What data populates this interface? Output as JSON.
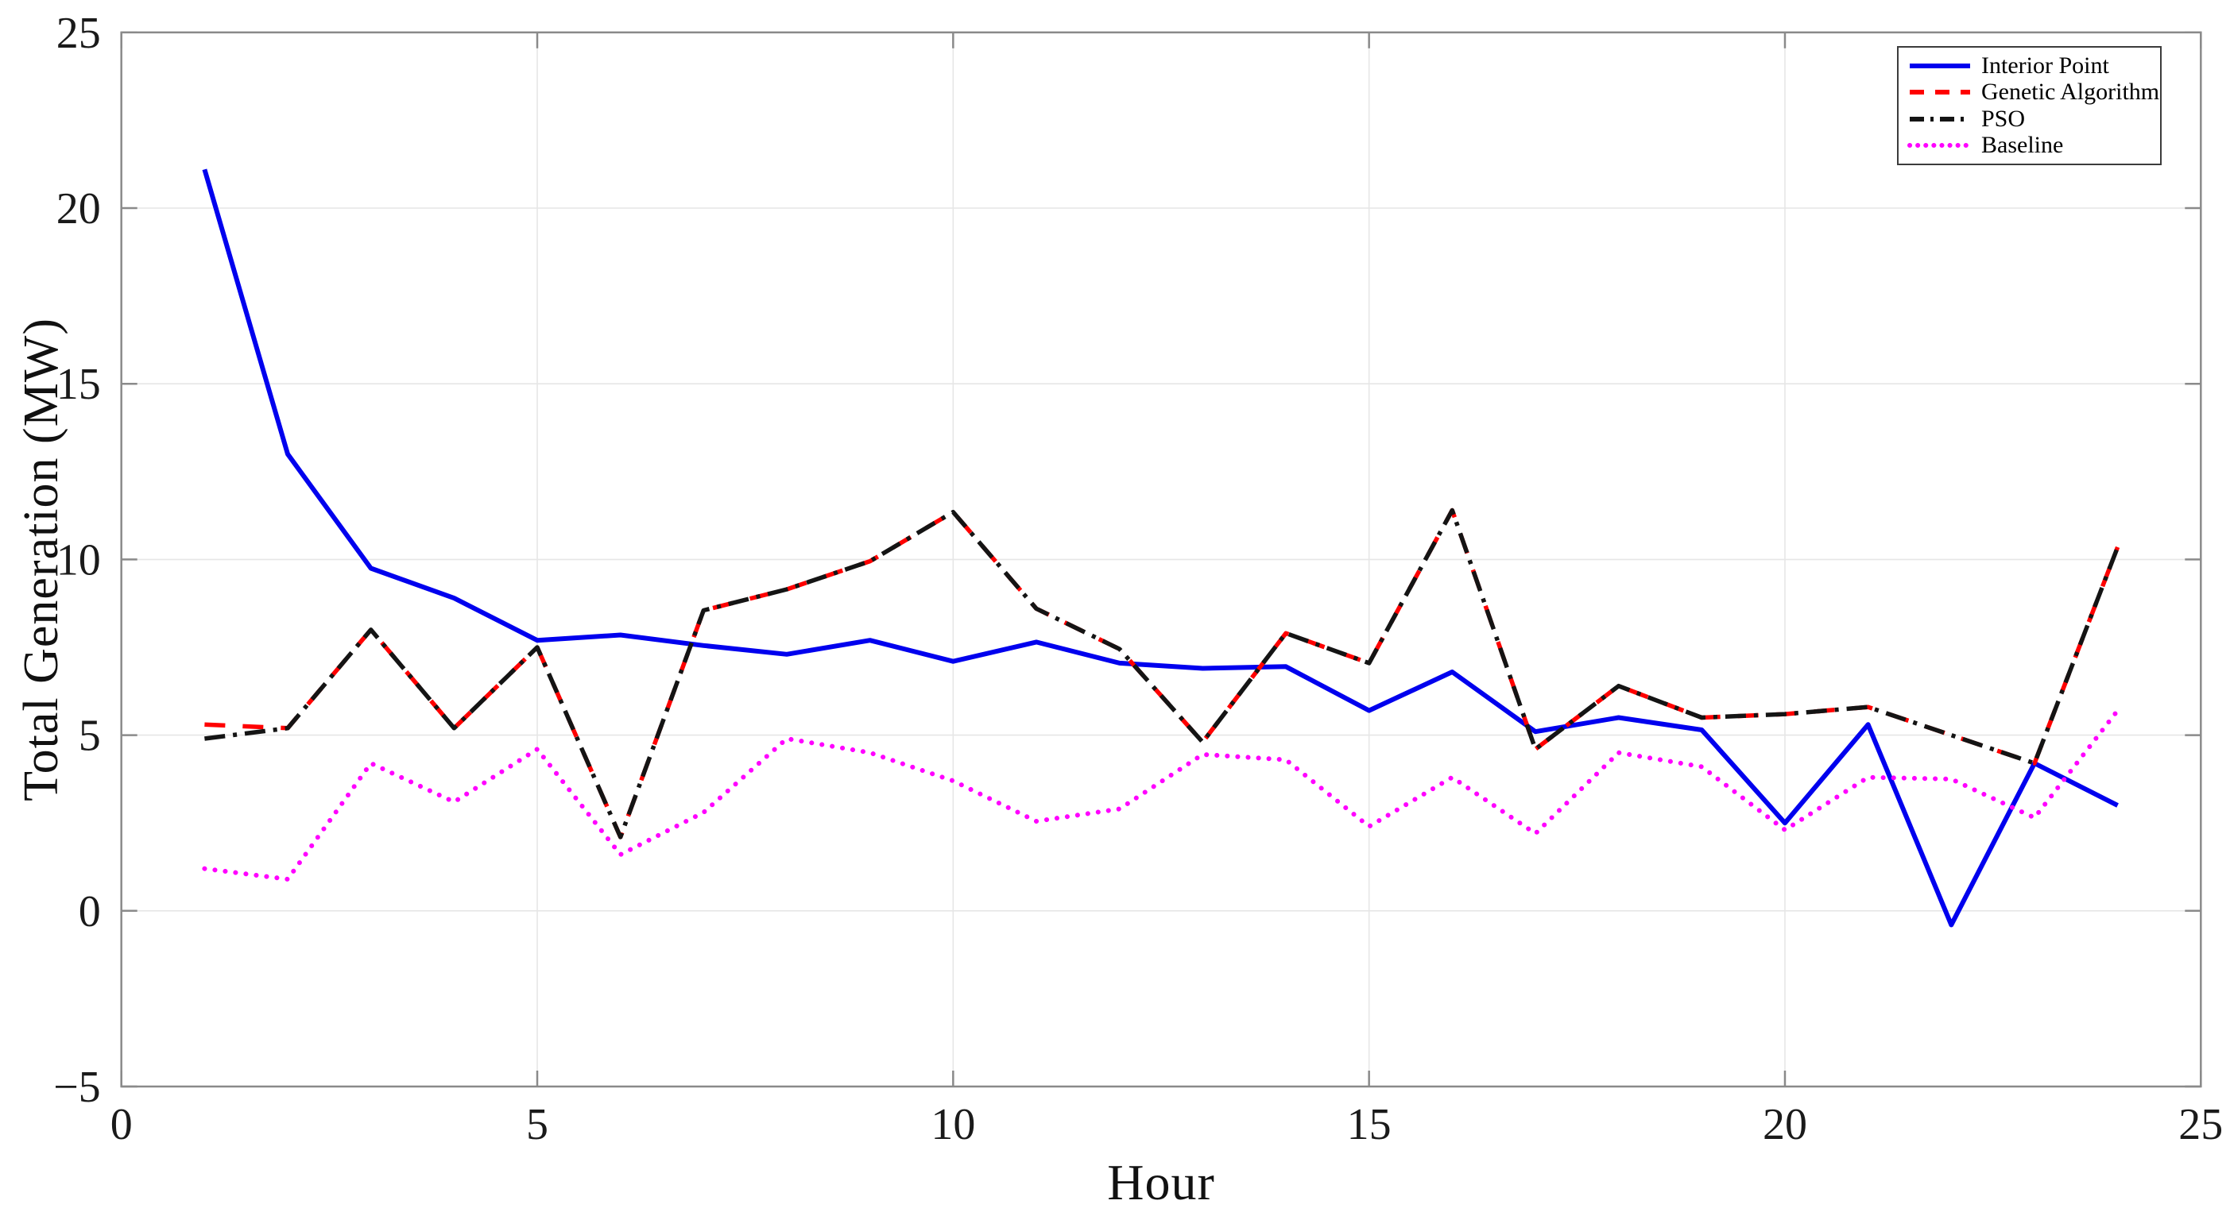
{
  "figure": {
    "background": "#ffffff",
    "box_color": "#8a8a8a",
    "grid_color": "#e6e6e6",
    "tick_label_color": "#1a1a1a"
  },
  "chart_data": {
    "type": "line",
    "title": "",
    "xlabel": "Hour",
    "ylabel": "Total Generation (MW)",
    "xlim": [
      0,
      25
    ],
    "ylim": [
      -5,
      25
    ],
    "x_ticks": [
      0,
      5,
      10,
      15,
      20,
      25
    ],
    "y_ticks": [
      -5,
      0,
      5,
      10,
      15,
      20,
      25
    ],
    "x_tick_labels": [
      "0",
      "5",
      "10",
      "15",
      "20",
      "25"
    ],
    "y_tick_labels": [
      "−5",
      "0",
      "5",
      "10",
      "15",
      "20",
      "25"
    ],
    "grid": true,
    "legend_position": "top-right",
    "x": [
      1,
      2,
      3,
      4,
      5,
      6,
      7,
      8,
      9,
      10,
      11,
      12,
      13,
      14,
      15,
      16,
      17,
      18,
      19,
      20,
      21,
      22,
      23,
      24
    ],
    "series": [
      {
        "name": "Interior Point",
        "color": "#0000ee",
        "style": "solid",
        "values": [
          21.1,
          13.0,
          9.75,
          8.9,
          7.7,
          7.85,
          7.55,
          7.3,
          7.7,
          7.1,
          7.65,
          7.05,
          6.9,
          6.95,
          5.7,
          6.8,
          5.1,
          5.5,
          5.15,
          2.5,
          5.3,
          -0.4,
          4.2,
          3.0
        ]
      },
      {
        "name": "Genetic Algorithm",
        "color": "#ff0000",
        "style": "dashed",
        "values": [
          5.3,
          5.2,
          8.0,
          5.2,
          7.5,
          2.1,
          8.55,
          9.15,
          9.95,
          11.35,
          8.6,
          7.45,
          4.8,
          7.9,
          7.05,
          11.4,
          4.6,
          6.4,
          5.5,
          5.6,
          5.8,
          5.0,
          4.2,
          10.35
        ]
      },
      {
        "name": "PSO",
        "color": "#141414",
        "style": "dash-dot",
        "values": [
          4.9,
          5.2,
          8.0,
          5.2,
          7.5,
          2.1,
          8.55,
          9.15,
          9.95,
          11.35,
          8.6,
          7.45,
          4.8,
          7.9,
          7.05,
          11.4,
          4.6,
          6.4,
          5.5,
          5.6,
          5.8,
          5.0,
          4.2,
          10.35
        ]
      },
      {
        "name": "Baseline",
        "color": "#ff00ff",
        "style": "dotted",
        "values": [
          1.2,
          0.9,
          4.2,
          3.1,
          4.6,
          1.6,
          2.8,
          4.9,
          4.5,
          3.7,
          2.55,
          2.9,
          4.45,
          4.3,
          2.4,
          3.8,
          2.2,
          4.5,
          4.1,
          2.3,
          3.8,
          3.75,
          2.65,
          5.7
        ]
      }
    ]
  }
}
